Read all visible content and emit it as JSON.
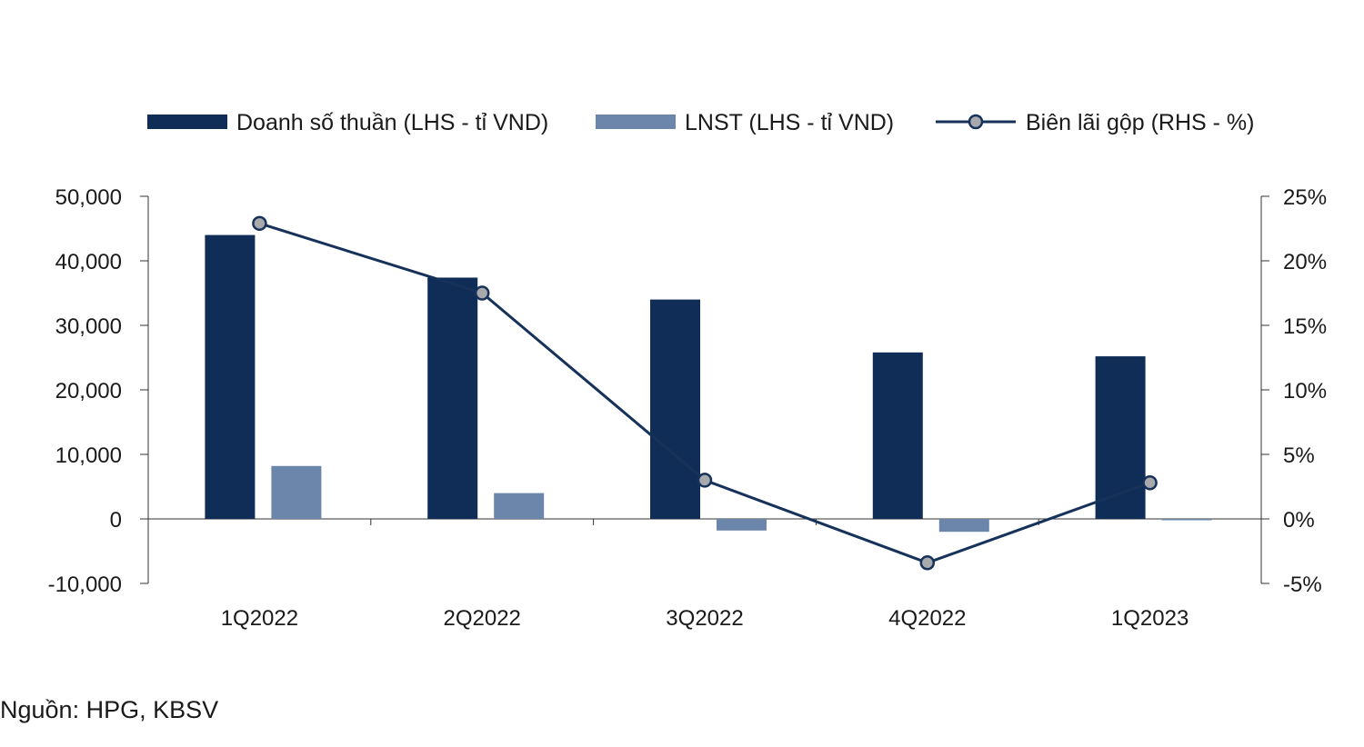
{
  "chart_data": {
    "type": "bar",
    "categories": [
      "1Q2022",
      "2Q2022",
      "3Q2022",
      "4Q2022",
      "1Q2023"
    ],
    "series": [
      {
        "name": "Doanh số thuần (LHS - tỉ VND)",
        "type": "bar",
        "axis": "left",
        "values": [
          44000,
          37400,
          34000,
          25800,
          25200
        ]
      },
      {
        "name": "LNST (LHS - tỉ VND)",
        "type": "bar",
        "axis": "left",
        "values": [
          8200,
          4000,
          -1800,
          -2000,
          0
        ]
      },
      {
        "name": "Biên lãi gộp (RHS - %)",
        "type": "line",
        "axis": "right",
        "values": [
          22.9,
          17.5,
          3.0,
          -3.4,
          2.8
        ]
      }
    ],
    "y_left": {
      "ylim": [
        -10000,
        50000
      ],
      "ticks": [
        "50,000",
        "40,000",
        "30,000",
        "20,000",
        "10,000",
        "0",
        "-10,000"
      ]
    },
    "y_right": {
      "ylim": [
        -5,
        25
      ],
      "ticks": [
        "25%",
        "20%",
        "15%",
        "10%",
        "5%",
        "0%",
        "-5%"
      ]
    },
    "legend_position": "top",
    "grid": false,
    "colors": {
      "revenue": "#0f2d56",
      "profit": "#6b86aa",
      "margin_line": "#17325a",
      "marker_fill": "#a7a9ac"
    }
  },
  "source": "Nguồn: HPG, KBSV"
}
